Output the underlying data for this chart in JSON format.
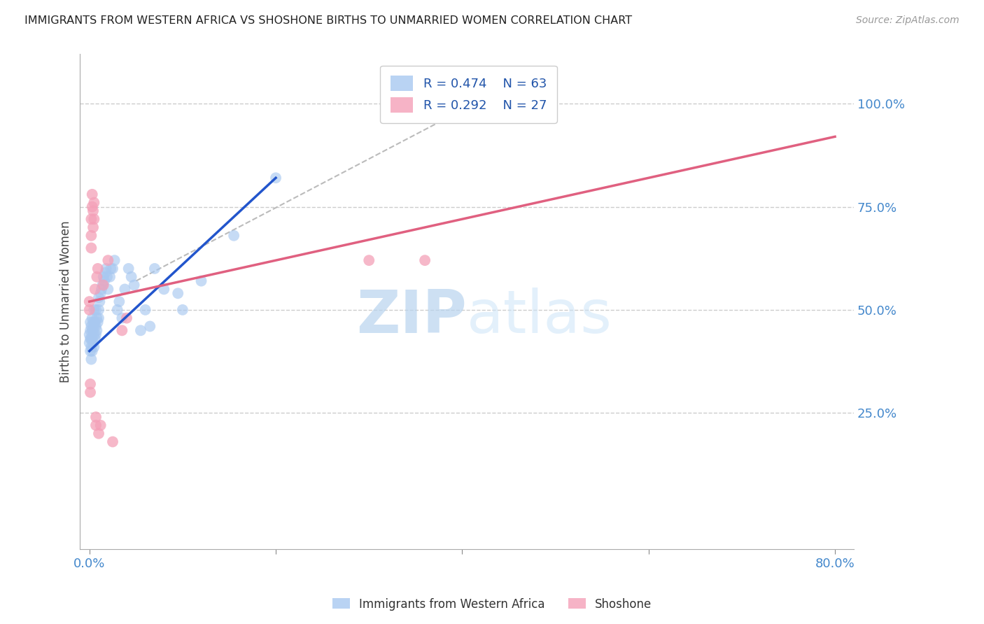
{
  "title": "IMMIGRANTS FROM WESTERN AFRICA VS SHOSHONE BIRTHS TO UNMARRIED WOMEN CORRELATION CHART",
  "source": "Source: ZipAtlas.com",
  "ylabel": "Births to Unmarried Women",
  "legend_r1": "R = 0.474",
  "legend_n1": "N = 63",
  "legend_r2": "R = 0.292",
  "legend_n2": "N = 27",
  "blue_color": "#a8c8f0",
  "pink_color": "#f4a0b8",
  "trend_blue": "#2255cc",
  "trend_pink": "#e06080",
  "dash_color": "#bbbbbb",
  "watermark_color": "#cce0f5",
  "grid_color": "#cccccc",
  "background_color": "#ffffff",
  "tick_color": "#4488cc",
  "blue_points_x": [
    0.0,
    0.0,
    0.001,
    0.001,
    0.001,
    0.001,
    0.002,
    0.002,
    0.002,
    0.002,
    0.003,
    0.003,
    0.003,
    0.003,
    0.004,
    0.004,
    0.004,
    0.005,
    0.005,
    0.005,
    0.005,
    0.006,
    0.006,
    0.007,
    0.007,
    0.007,
    0.008,
    0.008,
    0.009,
    0.01,
    0.01,
    0.01,
    0.011,
    0.012,
    0.013,
    0.014,
    0.015,
    0.016,
    0.017,
    0.018,
    0.019,
    0.02,
    0.022,
    0.023,
    0.025,
    0.027,
    0.03,
    0.032,
    0.035,
    0.038,
    0.042,
    0.045,
    0.048,
    0.055,
    0.06,
    0.065,
    0.07,
    0.08,
    0.095,
    0.1,
    0.12,
    0.155,
    0.2
  ],
  "blue_points_y": [
    0.42,
    0.44,
    0.4,
    0.43,
    0.45,
    0.47,
    0.38,
    0.41,
    0.43,
    0.46,
    0.4,
    0.43,
    0.45,
    0.48,
    0.42,
    0.45,
    0.47,
    0.41,
    0.44,
    0.46,
    0.5,
    0.43,
    0.47,
    0.44,
    0.46,
    0.5,
    0.45,
    0.48,
    0.47,
    0.48,
    0.5,
    0.53,
    0.52,
    0.54,
    0.55,
    0.56,
    0.58,
    0.57,
    0.59,
    0.6,
    0.58,
    0.55,
    0.58,
    0.6,
    0.6,
    0.62,
    0.5,
    0.52,
    0.48,
    0.55,
    0.6,
    0.58,
    0.56,
    0.45,
    0.5,
    0.46,
    0.6,
    0.55,
    0.54,
    0.5,
    0.57,
    0.68,
    0.82
  ],
  "pink_points_x": [
    0.0,
    0.0,
    0.001,
    0.001,
    0.002,
    0.002,
    0.002,
    0.003,
    0.003,
    0.004,
    0.004,
    0.005,
    0.005,
    0.006,
    0.007,
    0.007,
    0.008,
    0.009,
    0.01,
    0.012,
    0.015,
    0.02,
    0.025,
    0.035,
    0.04,
    0.3,
    0.36
  ],
  "pink_points_y": [
    0.5,
    0.52,
    0.3,
    0.32,
    0.65,
    0.68,
    0.72,
    0.75,
    0.78,
    0.7,
    0.74,
    0.72,
    0.76,
    0.55,
    0.22,
    0.24,
    0.58,
    0.6,
    0.2,
    0.22,
    0.56,
    0.62,
    0.18,
    0.45,
    0.48,
    0.62,
    0.62
  ],
  "blue_line_x": [
    0.0,
    0.2
  ],
  "blue_line_y": [
    0.4,
    0.82
  ],
  "pink_line_x": [
    0.0,
    0.8
  ],
  "pink_line_y": [
    0.52,
    0.92
  ],
  "dash_line_x": [
    0.05,
    0.43
  ],
  "dash_line_y": [
    0.57,
    1.02
  ],
  "xlim": [
    -0.01,
    0.82
  ],
  "ylim": [
    -0.08,
    1.12
  ],
  "xticks": [
    0.0,
    0.2,
    0.4,
    0.6,
    0.8
  ],
  "xtick_labels_show": [
    "0.0%",
    "",
    "",
    "",
    "80.0%"
  ],
  "yticks": [
    0.0,
    0.25,
    0.5,
    0.75,
    1.0
  ],
  "ytick_labels_right": [
    "",
    "25.0%",
    "50.0%",
    "75.0%",
    "100.0%"
  ]
}
